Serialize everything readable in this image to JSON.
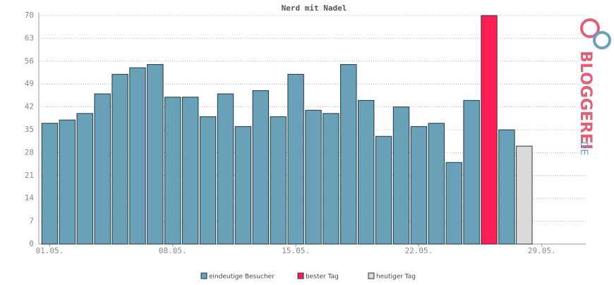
{
  "chart_data": {
    "type": "bar",
    "title": "Nerd mit Nadel",
    "categories": [
      "01.05.",
      null,
      null,
      null,
      null,
      null,
      null,
      "08.05.",
      null,
      null,
      null,
      null,
      null,
      null,
      "15.05.",
      null,
      null,
      null,
      null,
      null,
      null,
      "22.05.",
      null,
      null,
      null,
      null,
      null,
      null,
      "29.05.",
      null,
      null
    ],
    "series": [
      {
        "name": "eindeutige Besucher",
        "color": "#6aa0b8",
        "values": [
          37,
          38,
          40,
          46,
          52,
          54,
          55,
          45,
          45,
          39,
          46,
          36,
          47,
          39,
          52,
          41,
          40,
          55,
          44,
          33,
          42,
          36,
          37,
          25,
          44,
          null,
          35,
          null,
          null,
          null,
          null
        ]
      },
      {
        "name": "bester Tag",
        "color": "#ff1f55",
        "values": [
          null,
          null,
          null,
          null,
          null,
          null,
          null,
          null,
          null,
          null,
          null,
          null,
          null,
          null,
          null,
          null,
          null,
          null,
          null,
          null,
          null,
          null,
          null,
          null,
          null,
          70,
          null,
          null,
          null,
          null,
          null
        ]
      },
      {
        "name": "heutiger Tag",
        "color": "#d9d9d9",
        "values": [
          null,
          null,
          null,
          null,
          null,
          null,
          null,
          null,
          null,
          null,
          null,
          null,
          null,
          null,
          null,
          null,
          null,
          null,
          null,
          null,
          null,
          null,
          null,
          null,
          null,
          null,
          null,
          30,
          null,
          null,
          null
        ]
      }
    ],
    "ylim": [
      0,
      70
    ],
    "yticks": [
      0,
      7,
      14,
      21,
      28,
      35,
      42,
      49,
      56,
      63,
      70
    ],
    "grid": true,
    "logo": {
      "text": "BLOGGEREI",
      "suffix": ".DE"
    }
  }
}
